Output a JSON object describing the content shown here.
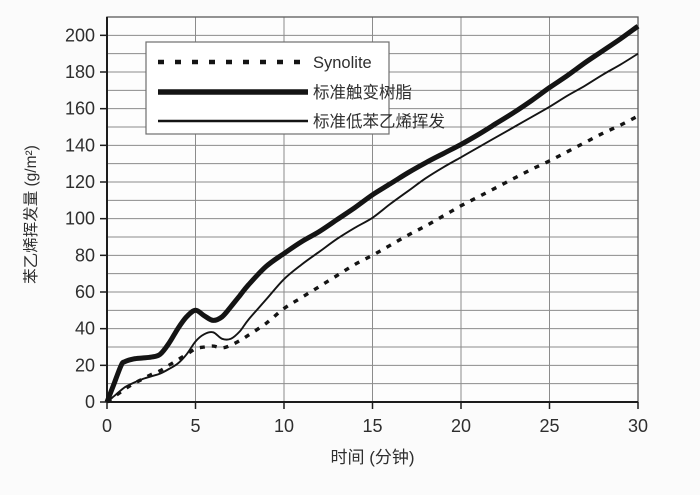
{
  "chart_data": {
    "type": "line",
    "title": "",
    "xlabel": "时间 (分钟)",
    "ylabel": "苯乙烯挥发量 (g/m²)",
    "xlim": [
      0,
      30
    ],
    "ylim": [
      0,
      210
    ],
    "x_ticks": [
      0,
      5,
      10,
      15,
      20,
      25,
      30
    ],
    "y_ticks": [
      0,
      20,
      40,
      60,
      80,
      100,
      120,
      140,
      160,
      180,
      200
    ],
    "y_minor_grid_step": 10,
    "x_grid_step": 5,
    "grid": true,
    "legend_position": "top-left-inside",
    "series": [
      {
        "name": "Synolite",
        "style": "dotted",
        "width": 3.4,
        "color": "#141414",
        "points": [
          [
            0,
            0
          ],
          [
            0.5,
            3.5
          ],
          [
            1,
            7
          ],
          [
            1.5,
            10
          ],
          [
            2,
            12.5
          ],
          [
            2.5,
            15
          ],
          [
            3,
            17
          ],
          [
            3.5,
            20
          ],
          [
            4,
            23
          ],
          [
            4.5,
            26
          ],
          [
            5,
            29
          ],
          [
            5.5,
            30
          ],
          [
            6,
            30.5
          ],
          [
            6.5,
            29.5
          ],
          [
            7,
            31
          ],
          [
            7.5,
            33.5
          ],
          [
            8,
            36.5
          ],
          [
            9,
            43
          ],
          [
            10,
            51
          ],
          [
            11,
            57
          ],
          [
            12,
            63
          ],
          [
            13,
            69
          ],
          [
            14,
            75
          ],
          [
            15,
            80
          ],
          [
            16,
            85.5
          ],
          [
            17,
            91
          ],
          [
            18,
            96
          ],
          [
            19,
            101.5
          ],
          [
            20,
            107
          ],
          [
            21,
            112
          ],
          [
            22,
            117
          ],
          [
            23,
            122
          ],
          [
            24,
            127
          ],
          [
            25,
            131.5
          ],
          [
            26,
            136.5
          ],
          [
            27,
            141.5
          ],
          [
            28,
            146.5
          ],
          [
            29,
            151
          ],
          [
            30,
            156
          ]
        ]
      },
      {
        "name": "标准触变树脂",
        "style": "solid",
        "width": 5,
        "color": "#141414",
        "points": [
          [
            0,
            0
          ],
          [
            0.4,
            10
          ],
          [
            0.8,
            20
          ],
          [
            1,
            22
          ],
          [
            1.5,
            23.5
          ],
          [
            2,
            24
          ],
          [
            2.5,
            24.5
          ],
          [
            3,
            26
          ],
          [
            3.5,
            32
          ],
          [
            4,
            40
          ],
          [
            4.5,
            46.5
          ],
          [
            5,
            50
          ],
          [
            5.5,
            47
          ],
          [
            6,
            44.5
          ],
          [
            6.5,
            46.5
          ],
          [
            7,
            52
          ],
          [
            7.5,
            58
          ],
          [
            8,
            64
          ],
          [
            9,
            74
          ],
          [
            10,
            81
          ],
          [
            11,
            87.5
          ],
          [
            12,
            93
          ],
          [
            13,
            99.5
          ],
          [
            14,
            106
          ],
          [
            15,
            113
          ],
          [
            16,
            119
          ],
          [
            17,
            125
          ],
          [
            18,
            130.5
          ],
          [
            19,
            135.5
          ],
          [
            20,
            140.5
          ],
          [
            21,
            146
          ],
          [
            22,
            152
          ],
          [
            23,
            158
          ],
          [
            24,
            164.5
          ],
          [
            25,
            171.5
          ],
          [
            26,
            178
          ],
          [
            27,
            185
          ],
          [
            28,
            191.5
          ],
          [
            29,
            198
          ],
          [
            30,
            205
          ]
        ]
      },
      {
        "name": "标准低苯乙烯挥发",
        "style": "solid",
        "width": 1.9,
        "color": "#141414",
        "points": [
          [
            0,
            0
          ],
          [
            0.5,
            4
          ],
          [
            1,
            8
          ],
          [
            1.5,
            10.5
          ],
          [
            2,
            12.5
          ],
          [
            2.5,
            14
          ],
          [
            3,
            15.5
          ],
          [
            3.5,
            18
          ],
          [
            4,
            21
          ],
          [
            4.5,
            26
          ],
          [
            5,
            33
          ],
          [
            5.5,
            37
          ],
          [
            6,
            38
          ],
          [
            6.5,
            34.5
          ],
          [
            7,
            34.5
          ],
          [
            7.5,
            38.5
          ],
          [
            8,
            45
          ],
          [
            9,
            56
          ],
          [
            10,
            67
          ],
          [
            11,
            75
          ],
          [
            12,
            82
          ],
          [
            13,
            89
          ],
          [
            14,
            95
          ],
          [
            15,
            100.5
          ],
          [
            16,
            108
          ],
          [
            17,
            115
          ],
          [
            18,
            122
          ],
          [
            19,
            128
          ],
          [
            20,
            133.5
          ],
          [
            21,
            139
          ],
          [
            22,
            144.5
          ],
          [
            23,
            150
          ],
          [
            24,
            155.5
          ],
          [
            25,
            161
          ],
          [
            26,
            167
          ],
          [
            27,
            172.5
          ],
          [
            28,
            178.5
          ],
          [
            29,
            184
          ],
          [
            30,
            190
          ]
        ]
      }
    ]
  },
  "colors": {
    "background": "#fbfbfb",
    "plot_background": "#fdfdfd",
    "gridline": "#8c8c8c",
    "border": "#5a5a5a",
    "axis": "#1c1c1c",
    "text": "#2e2e2e",
    "legend_border": "#6f6f6f",
    "legend_background": "#ffffff"
  }
}
